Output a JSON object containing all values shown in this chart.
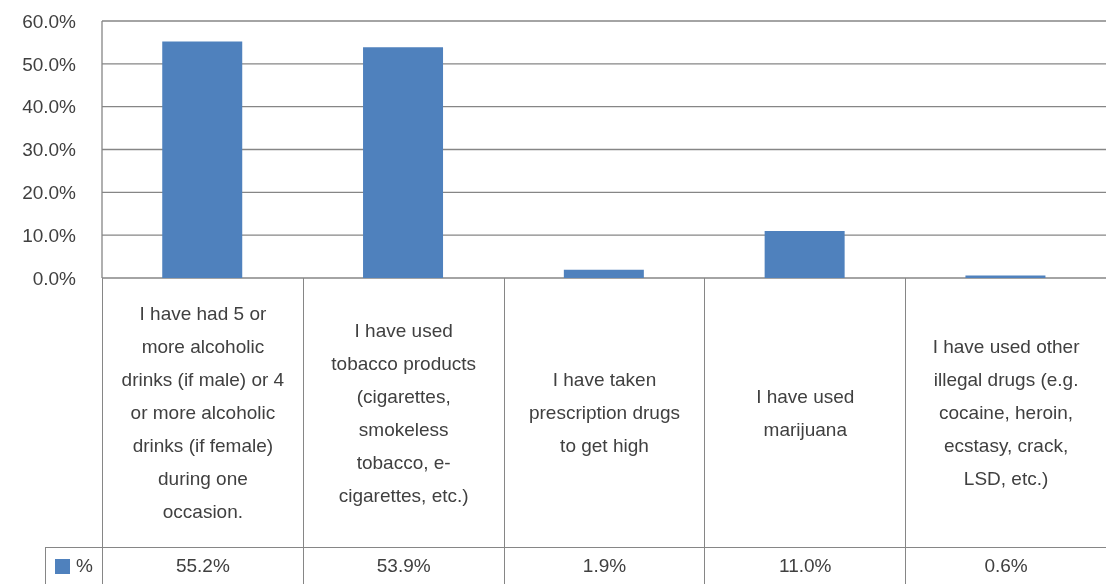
{
  "chart_data": {
    "type": "bar",
    "categories": [
      "I have had 5 or more alcoholic drinks (if male) or 4 or more alcoholic drinks (if female) during one occasion.",
      "I have used tobacco products (cigarettes, smokeless tobacco, e-cigarettes, etc.)",
      "I have taken prescription drugs to get high",
      "I have used marijuana",
      "I have used other illegal drugs (e.g. cocaine, heroin, ecstasy, crack, LSD, etc.)"
    ],
    "series": [
      {
        "name": "%",
        "color": "#4f81bd",
        "values": [
          55.2,
          53.9,
          1.9,
          11.0,
          0.6
        ],
        "value_labels": [
          "55.2%",
          "53.9%",
          "1.9%",
          "11.0%",
          "0.6%"
        ]
      }
    ],
    "ylim": [
      0,
      60
    ],
    "yticks": [
      {
        "value": 0,
        "label": "0.0%"
      },
      {
        "value": 10,
        "label": "10.0%"
      },
      {
        "value": 20,
        "label": "20.0%"
      },
      {
        "value": 30,
        "label": "30.0%"
      },
      {
        "value": 40,
        "label": "40.0%"
      },
      {
        "value": 50,
        "label": "50.0%"
      },
      {
        "value": 60,
        "label": "60.0%"
      }
    ],
    "grid": "y",
    "legend": "bottom left"
  }
}
